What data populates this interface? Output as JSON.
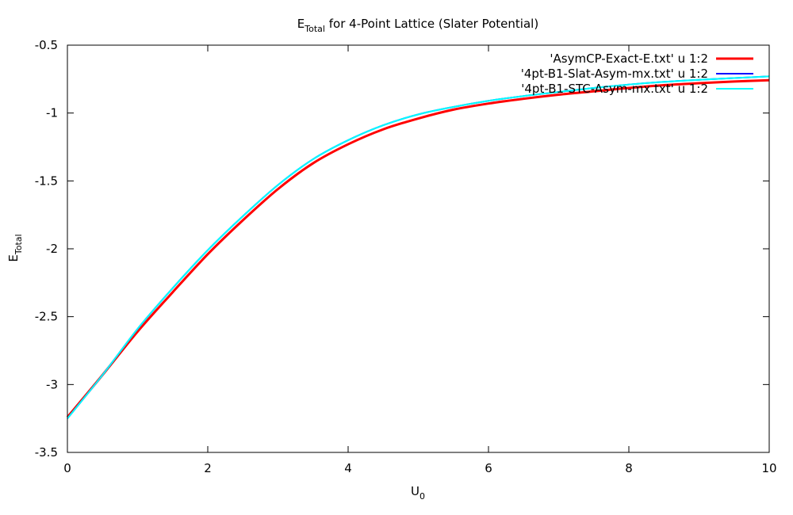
{
  "chart_data": {
    "type": "line",
    "title": {
      "main": "E",
      "sub": "Total",
      "rest": " for 4-Point Lattice (Slater Potential)"
    },
    "xlabel": {
      "main": "U",
      "sub": "0"
    },
    "ylabel": {
      "main": "E",
      "sub": "Total"
    },
    "xlim": [
      0,
      10
    ],
    "ylim": [
      -3.5,
      -0.5
    ],
    "xticks": [
      0,
      2,
      4,
      6,
      8,
      10
    ],
    "yticks": [
      -3.5,
      -3,
      -2.5,
      -2,
      -1.5,
      -1,
      -0.5
    ],
    "grid": false,
    "legend_position": "top-right",
    "series": [
      {
        "name": "'AsymCP-Exact-E.txt' u 1:2",
        "color": "#ff0000",
        "x": [
          0,
          0.5,
          1,
          1.5,
          2,
          2.5,
          3,
          3.5,
          4,
          4.5,
          5,
          5.5,
          6,
          6.5,
          7,
          7.5,
          8,
          8.5,
          9,
          9.5,
          10
        ],
        "y": [
          -3.24,
          -2.93,
          -2.61,
          -2.32,
          -2.04,
          -1.79,
          -1.56,
          -1.37,
          -1.23,
          -1.12,
          -1.04,
          -0.975,
          -0.93,
          -0.895,
          -0.865,
          -0.84,
          -0.815,
          -0.795,
          -0.78,
          -0.768,
          -0.758
        ]
      },
      {
        "name": "'4pt-B1-Slat-Asym-mx.txt' u 1:2",
        "color": "#0000ff",
        "x": [
          0,
          0.5,
          1,
          1.5,
          2,
          2.5,
          3,
          3.5,
          4,
          4.5,
          5,
          5.5,
          6,
          6.5,
          7,
          7.5,
          8,
          8.5,
          9,
          9.5,
          10
        ],
        "y": [
          -3.25,
          -2.93,
          -2.59,
          -2.29,
          -2.01,
          -1.76,
          -1.53,
          -1.34,
          -1.2,
          -1.09,
          -1.01,
          -0.955,
          -0.91,
          -0.875,
          -0.845,
          -0.815,
          -0.79,
          -0.77,
          -0.755,
          -0.742,
          -0.73
        ]
      },
      {
        "name": "'4pt-B1-STC-Asym-mx.txt' u 1:2",
        "color": "#00ffff",
        "x": [
          0,
          0.5,
          1,
          1.5,
          2,
          2.5,
          3,
          3.5,
          4,
          4.5,
          5,
          5.5,
          6,
          6.5,
          7,
          7.5,
          8,
          8.5,
          9,
          9.5,
          10
        ],
        "y": [
          -3.25,
          -2.93,
          -2.59,
          -2.29,
          -2.01,
          -1.76,
          -1.53,
          -1.34,
          -1.2,
          -1.09,
          -1.01,
          -0.955,
          -0.91,
          -0.875,
          -0.845,
          -0.815,
          -0.79,
          -0.77,
          -0.755,
          -0.742,
          -0.73
        ]
      }
    ]
  }
}
